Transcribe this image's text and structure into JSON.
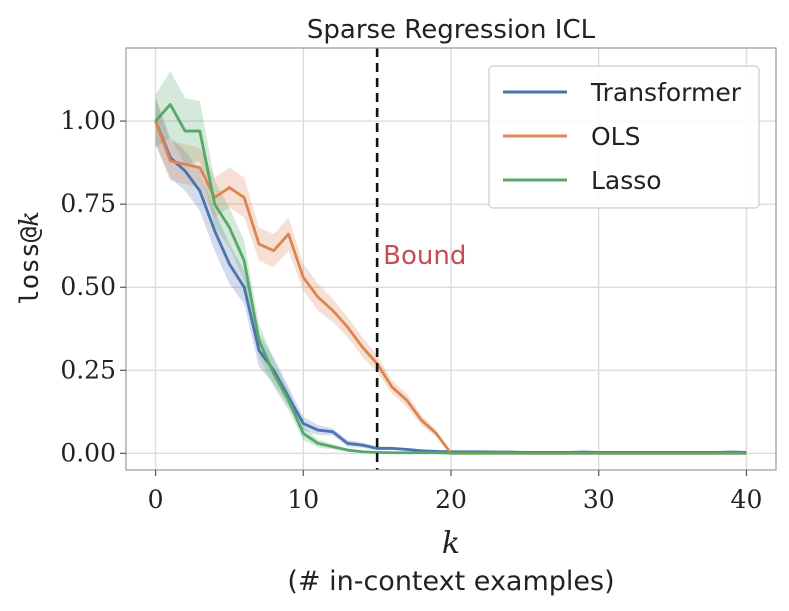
{
  "chart_data": {
    "type": "line",
    "title": "Sparse Regression ICL",
    "xlabel": "k",
    "xlabel_sub": "(# in-context examples)",
    "ylabel_text": "loss@",
    "ylabel_var": "k",
    "xlim": [
      -2,
      42
    ],
    "ylim": [
      -0.05,
      1.22
    ],
    "xticks": [
      0,
      10,
      20,
      30,
      40
    ],
    "xtick_labels": [
      "0",
      "10",
      "20",
      "30",
      "40"
    ],
    "yticks": [
      0,
      0.25,
      0.5,
      0.75,
      1.0
    ],
    "ytick_labels": [
      "0.00",
      "0.25",
      "0.50",
      "0.75",
      "1.00"
    ],
    "grid": true,
    "legend_position": "top-right",
    "vline": {
      "x": 15,
      "label": "Bound",
      "color": "#c44e52"
    },
    "series": [
      {
        "name": "Transformer",
        "color": "#4c72b0",
        "x": [
          0,
          1,
          2,
          3,
          4,
          5,
          6,
          7,
          8,
          9,
          10,
          11,
          12,
          13,
          14,
          15,
          16,
          17,
          18,
          19,
          20,
          21,
          22,
          23,
          24,
          25,
          26,
          27,
          28,
          29,
          30,
          31,
          32,
          33,
          34,
          35,
          36,
          37,
          38,
          39,
          40
        ],
        "y": [
          1.0,
          0.89,
          0.85,
          0.79,
          0.67,
          0.57,
          0.5,
          0.31,
          0.25,
          0.17,
          0.09,
          0.07,
          0.065,
          0.03,
          0.025,
          0.015,
          0.015,
          0.012,
          0.008,
          0.006,
          0.005,
          0.005,
          0.005,
          0.004,
          0.004,
          0.003,
          0.003,
          0.003,
          0.003,
          0.004,
          0.003,
          0.003,
          0.003,
          0.003,
          0.003,
          0.003,
          0.003,
          0.003,
          0.003,
          0.004,
          0.003
        ],
        "band": [
          0.07,
          0.06,
          0.06,
          0.06,
          0.06,
          0.06,
          0.05,
          0.05,
          0.04,
          0.03,
          0.02,
          0.015,
          0.01,
          0.01,
          0.008,
          0.006,
          0.005,
          0.004,
          0.004,
          0.003,
          0.003,
          0.003,
          0.003,
          0.003,
          0.003,
          0.003,
          0.003,
          0.003,
          0.003,
          0.003,
          0.003,
          0.003,
          0.003,
          0.003,
          0.003,
          0.003,
          0.003,
          0.003,
          0.003,
          0.003,
          0.003
        ]
      },
      {
        "name": "OLS",
        "color": "#dd8452",
        "x": [
          0,
          1,
          2,
          3,
          4,
          5,
          6,
          7,
          8,
          9,
          10,
          11,
          12,
          13,
          14,
          15,
          16,
          17,
          18,
          19,
          20,
          21,
          22,
          23,
          24,
          25,
          26,
          27,
          28,
          29,
          30,
          31,
          32,
          33,
          34,
          35,
          36,
          37,
          38,
          39,
          40
        ],
        "y": [
          1.0,
          0.88,
          0.87,
          0.86,
          0.77,
          0.8,
          0.77,
          0.63,
          0.61,
          0.66,
          0.53,
          0.47,
          0.43,
          0.38,
          0.32,
          0.27,
          0.2,
          0.16,
          0.1,
          0.06,
          0.0,
          0.0,
          0.0,
          0.0,
          0.0,
          0.0,
          0.0,
          0.0,
          0.0,
          0.0,
          0.0,
          0.0,
          0.0,
          0.0,
          0.0,
          0.0,
          0.0,
          0.0,
          0.0,
          0.0,
          0.0
        ],
        "band": [
          0.07,
          0.06,
          0.06,
          0.06,
          0.06,
          0.06,
          0.06,
          0.05,
          0.05,
          0.05,
          0.04,
          0.04,
          0.035,
          0.03,
          0.03,
          0.025,
          0.02,
          0.02,
          0.015,
          0.01,
          0.003,
          0.002,
          0.002,
          0.002,
          0.002,
          0.002,
          0.002,
          0.002,
          0.002,
          0.002,
          0.002,
          0.002,
          0.002,
          0.002,
          0.002,
          0.002,
          0.002,
          0.002,
          0.002,
          0.002,
          0.002
        ]
      },
      {
        "name": "Lasso",
        "color": "#55a868",
        "x": [
          0,
          1,
          2,
          3,
          4,
          5,
          6,
          7,
          8,
          9,
          10,
          11,
          12,
          13,
          14,
          15,
          16,
          17,
          18,
          19,
          20,
          21,
          22,
          23,
          24,
          25,
          26,
          27,
          28,
          29,
          30,
          31,
          32,
          33,
          34,
          35,
          36,
          37,
          38,
          39,
          40
        ],
        "y": [
          1.0,
          1.05,
          0.97,
          0.97,
          0.75,
          0.68,
          0.58,
          0.34,
          0.24,
          0.16,
          0.06,
          0.03,
          0.02,
          0.01,
          0.005,
          0.003,
          0.002,
          0.002,
          0.002,
          0.002,
          0.001,
          0.001,
          0.001,
          0.001,
          0.001,
          0.001,
          0.001,
          0.001,
          0.001,
          0.001,
          0.001,
          0.001,
          0.001,
          0.001,
          0.001,
          0.001,
          0.001,
          0.001,
          0.001,
          0.001,
          0.001
        ],
        "band": [
          0.08,
          0.1,
          0.1,
          0.09,
          0.07,
          0.06,
          0.06,
          0.05,
          0.04,
          0.03,
          0.02,
          0.012,
          0.008,
          0.005,
          0.003,
          0.002,
          0.002,
          0.002,
          0.002,
          0.002,
          0.001,
          0.001,
          0.001,
          0.001,
          0.001,
          0.001,
          0.001,
          0.001,
          0.001,
          0.001,
          0.001,
          0.001,
          0.001,
          0.001,
          0.001,
          0.001,
          0.001,
          0.001,
          0.001,
          0.001,
          0.001
        ]
      }
    ]
  }
}
